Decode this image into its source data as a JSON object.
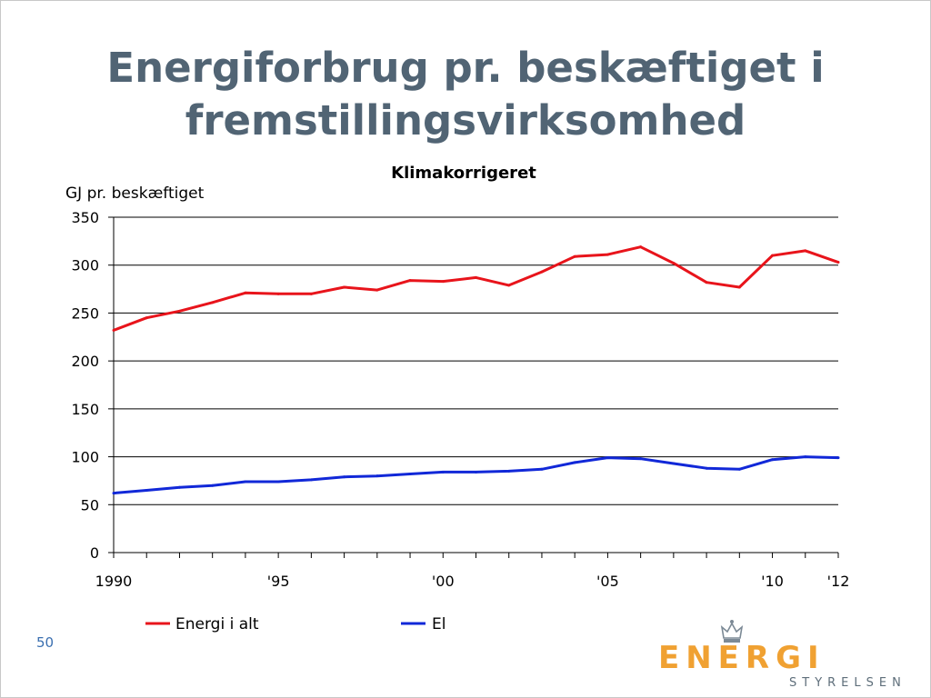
{
  "slide": {
    "title_line1": "Energiforbrug pr. beskæftiget i",
    "title_line2": "fremstillingsvirksomhed",
    "page_number": "50",
    "accent_color": "#516474"
  },
  "logo": {
    "word": "ENERGI",
    "subtitle": "STYRELSEN",
    "color": "#f0a132",
    "icon": "crown-icon"
  },
  "chart_data": {
    "type": "line",
    "title": "Klimakorrigeret",
    "ylabel": "GJ pr. beskæftiget",
    "xlabel": "",
    "ylim": [
      0,
      350
    ],
    "yticks": [
      0,
      50,
      100,
      150,
      200,
      250,
      300,
      350
    ],
    "xlim": [
      1990,
      2012
    ],
    "xtick_labels": [
      {
        "x": 1990,
        "label": "1990"
      },
      {
        "x": 1995,
        "label": "'95"
      },
      {
        "x": 2000,
        "label": "'00"
      },
      {
        "x": 2005,
        "label": "'05"
      },
      {
        "x": 2010,
        "label": "'10"
      },
      {
        "x": 2012,
        "label": "'12"
      }
    ],
    "grid": true,
    "legend_position": "bottom",
    "x": [
      1990,
      1991,
      1992,
      1993,
      1994,
      1995,
      1996,
      1997,
      1998,
      1999,
      2000,
      2001,
      2002,
      2003,
      2004,
      2005,
      2006,
      2007,
      2008,
      2009,
      2010,
      2011,
      2012
    ],
    "series": [
      {
        "name": "Energi i alt",
        "color": "#e8141b",
        "values": [
          232,
          245,
          252,
          261,
          271,
          270,
          270,
          277,
          274,
          284,
          283,
          287,
          279,
          293,
          309,
          311,
          319,
          302,
          282,
          277,
          310,
          315,
          303
        ]
      },
      {
        "name": "El",
        "color": "#1128d8",
        "values": [
          62,
          65,
          68,
          70,
          74,
          74,
          76,
          79,
          80,
          82,
          84,
          84,
          85,
          87,
          94,
          99,
          98,
          93,
          88,
          87,
          97,
          100,
          99
        ]
      }
    ]
  }
}
